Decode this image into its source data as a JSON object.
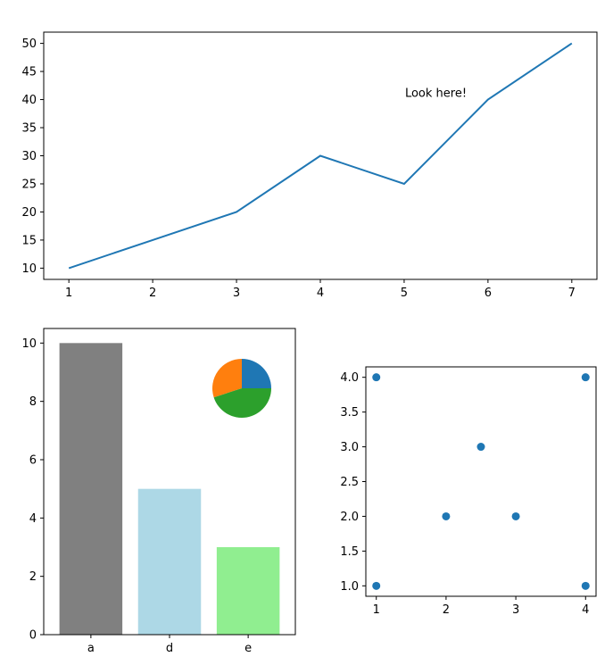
{
  "chart_data": [
    {
      "type": "line",
      "x": [
        1,
        2,
        3,
        4,
        5,
        6,
        7
      ],
      "series": [
        {
          "values": [
            10,
            15,
            20,
            30,
            25,
            40,
            50
          ],
          "color": "#1f77b4"
        }
      ],
      "xlim": [
        0.7,
        7.3
      ],
      "ylim": [
        8,
        52
      ],
      "xticks": [
        "1",
        "2",
        "3",
        "4",
        "5",
        "6",
        "7"
      ],
      "yticks": [
        "10",
        "15",
        "20",
        "25",
        "30",
        "35",
        "40",
        "45",
        "50"
      ],
      "annotations": [
        {
          "text": "Look here!",
          "x": 5,
          "y": 40
        }
      ],
      "grid": false
    },
    {
      "type": "bar",
      "categories": [
        "a",
        "d",
        "e"
      ],
      "values": [
        10,
        5,
        3
      ],
      "colors": [
        "#808080",
        "#add8e6",
        "#90ee90"
      ],
      "ylim": [
        0,
        10.5
      ],
      "yticks": [
        "0",
        "2",
        "4",
        "6",
        "8",
        "10"
      ],
      "grid": false
    },
    {
      "type": "pie",
      "inset": true,
      "values": [
        0.25,
        0.3,
        0.45
      ],
      "colors": [
        "#1f77b4",
        "#ff7f0e",
        "#2ca02c"
      ]
    },
    {
      "type": "scatter",
      "x": [
        1,
        1,
        4,
        4,
        2,
        3,
        2.5
      ],
      "y": [
        1,
        4,
        1,
        4,
        2,
        2,
        3
      ],
      "color": "#1f77b4",
      "xlim": [
        0.85,
        4.15
      ],
      "ylim": [
        0.85,
        4.15
      ],
      "xticks": [
        "1",
        "2",
        "3",
        "4"
      ],
      "yticks": [
        "1.0",
        "1.5",
        "2.0",
        "2.5",
        "3.0",
        "3.5",
        "4.0"
      ],
      "grid": false
    }
  ]
}
